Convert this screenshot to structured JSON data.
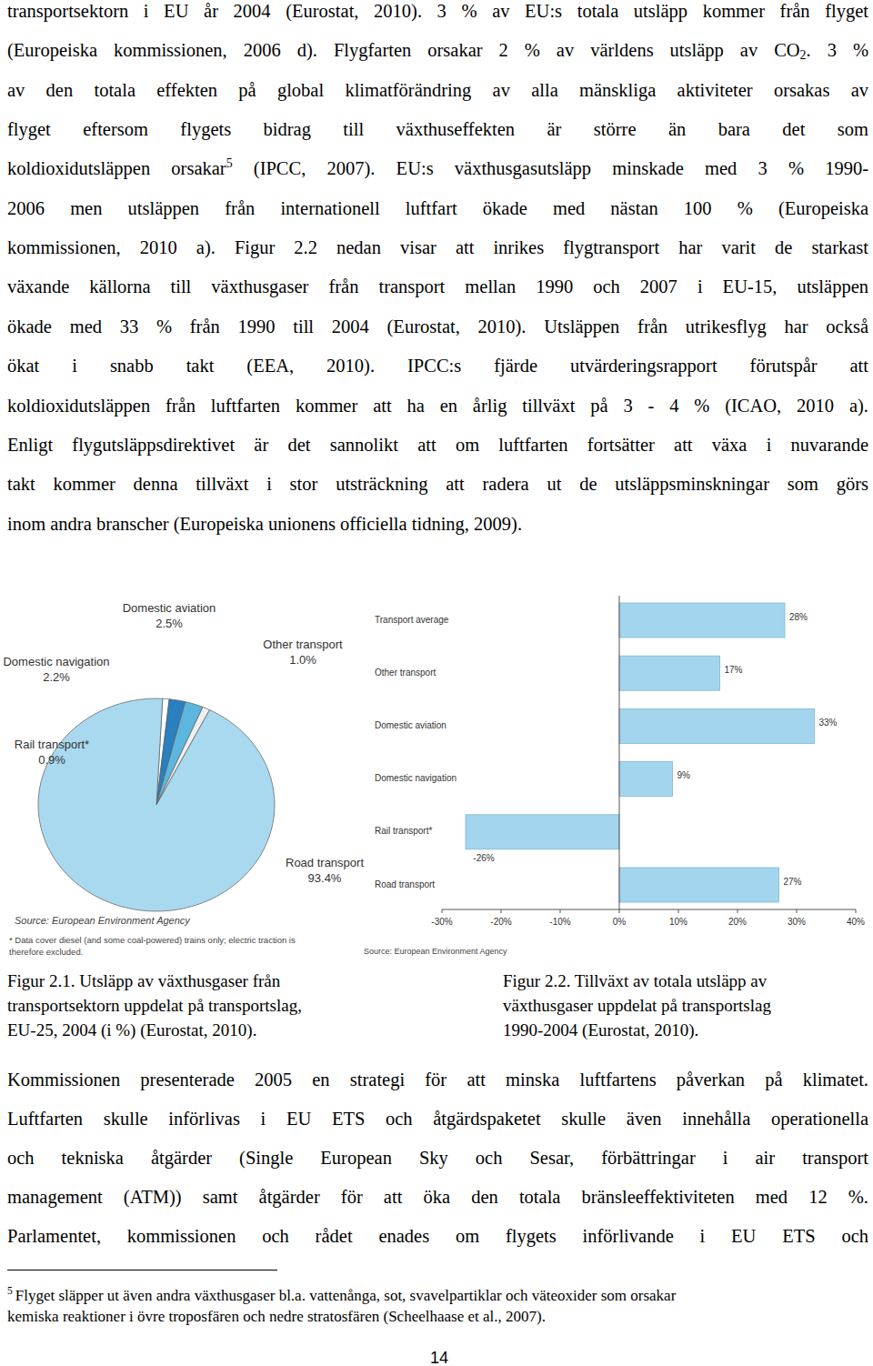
{
  "paragraphs": [
    [
      "transportsektorn i EU år 2004 (Eurostat, 2010). 3 % av EU:s totala utsläpp kommer från flyget",
      [
        "(Europeiska kommissionen, 2006 d). Flygfarten orsakar 2 % av världens utsläpp av CO",
        {
          "sub": "2"
        },
        ". 3 %"
      ],
      "av den totala effekten på global klimatförändring av alla mänskliga aktiviteter orsakas av",
      "flyget eftersom flygets bidrag till växthuseffekten är större än bara det som",
      [
        "koldioxidutsläppen orsakar",
        {
          "sup": "5"
        },
        " (IPCC, 2007). EU:s växthusgasutsläpp minskade med 3 % 1990-"
      ],
      "2006 men utsläppen från internationell luftfart ökade med nästan 100 % (Europeiska",
      "kommissionen, 2010 a). Figur 2.2 nedan visar att inrikes flygtransport har varit de starkast",
      "växande källorna till växthusgaser från transport mellan 1990 och 2007 i EU-15, utsläppen",
      "ökade med 33 % från 1990 till 2004 (Eurostat, 2010). Utsläppen från utrikesflyg har också",
      "ökat i snabb takt (EEA, 2010). IPCC:s fjärde utvärderingsrapport förutspår att",
      "koldioxidutsläppen från luftfarten kommer att ha en årlig tillväxt på 3 - 4 % (ICAO, 2010 a).",
      "Enligt flygutsläppsdirektivet är det sannolikt att om luftfarten fortsätter att växa i nuvarande",
      "takt kommer denna tillväxt i stor utsträckning att radera ut de utsläppsminskningar som görs",
      "inom andra branscher (Europeiska unionens officiella tidning, 2009)."
    ],
    [
      "Kommissionen presenterade 2005 en strategi för att minska luftfartens påverkan på klimatet.",
      "Luftfarten skulle införlivas i EU ETS och åtgärdspaketet skulle även innehålla operationella",
      "och tekniska åtgärder (Single European Sky och Sesar, förbättringar i air transport",
      "management (ATM)) samt åtgärder för att öka den totala bränsleeffektiviteten med 12 %.",
      "Parlamentet, kommissionen och rådet enades om flygets införlivande i EU ETS och"
    ]
  ],
  "chart_data": [
    {
      "type": "pie",
      "categories": [
        "Rail transport*",
        "Domestic navigation",
        "Domestic aviation",
        "Other transport",
        "Road transport"
      ],
      "values": [
        0.9,
        2.2,
        2.5,
        1.0,
        93.4
      ],
      "value_labels": [
        "0.9%",
        "2.2%",
        "2.5%",
        "1.0%",
        "93.4%"
      ],
      "colors": [
        "#ffffff",
        "#2a7fbf",
        "#5db6de",
        "#f0f0f0",
        "#a9d9ef"
      ],
      "data_labels": true,
      "annotations": [
        "Source: European Environment Agency",
        "* Data cover diesel (and some coal-powered) trains only; electric traction is",
        "therefore excluded."
      ]
    },
    {
      "type": "bar",
      "orientation": "horizontal",
      "categories": [
        "Transport average",
        "Other transport",
        "Domestic aviation",
        "Domestic navigation",
        "Rail transport*",
        "Road transport"
      ],
      "values": [
        28,
        17,
        33,
        9,
        -26,
        27
      ],
      "value_labels": [
        "28%",
        "17%",
        "33%",
        "9%",
        "-26%",
        "27%"
      ],
      "color": "#a3d5ee",
      "xlim": [
        -30,
        40
      ],
      "xticks": [
        {
          "value": -30,
          "label": "-30%"
        },
        {
          "value": -20,
          "label": "-20%"
        },
        {
          "value": -10,
          "label": "-10%"
        },
        {
          "value": 0,
          "label": "0%"
        },
        {
          "value": 10,
          "label": "10%"
        },
        {
          "value": 20,
          "label": "20%"
        },
        {
          "value": 30,
          "label": "30%"
        },
        {
          "value": 40,
          "label": "40%"
        }
      ],
      "grid": false,
      "data_labels": true,
      "annotations": [
        "Source: European Environment Agency"
      ]
    }
  ],
  "captions": [
    [
      "Figur 2.1. Utsläpp av växthusgaser från",
      "transportsektorn uppdelat på transportslag,",
      "EU-25, 2004 (i %) (Eurostat, 2010)."
    ],
    [
      "Figur 2.2. Tillväxt av totala utsläpp av",
      "växthusgaser uppdelat på transportslag",
      "1990-2004 (Eurostat, 2010)."
    ]
  ],
  "footnote": [
    [
      {
        "sup": "5"
      },
      "Flyget släpper ut även andra växthusgaser bl.a. vattenånga, sot, svavelpartiklar och väteoxider som orsakar"
    ],
    "kemiska reaktioner i övre troposfären och nedre stratosfären (Scheelhaase et al., 2007)."
  ],
  "page_number": "14"
}
